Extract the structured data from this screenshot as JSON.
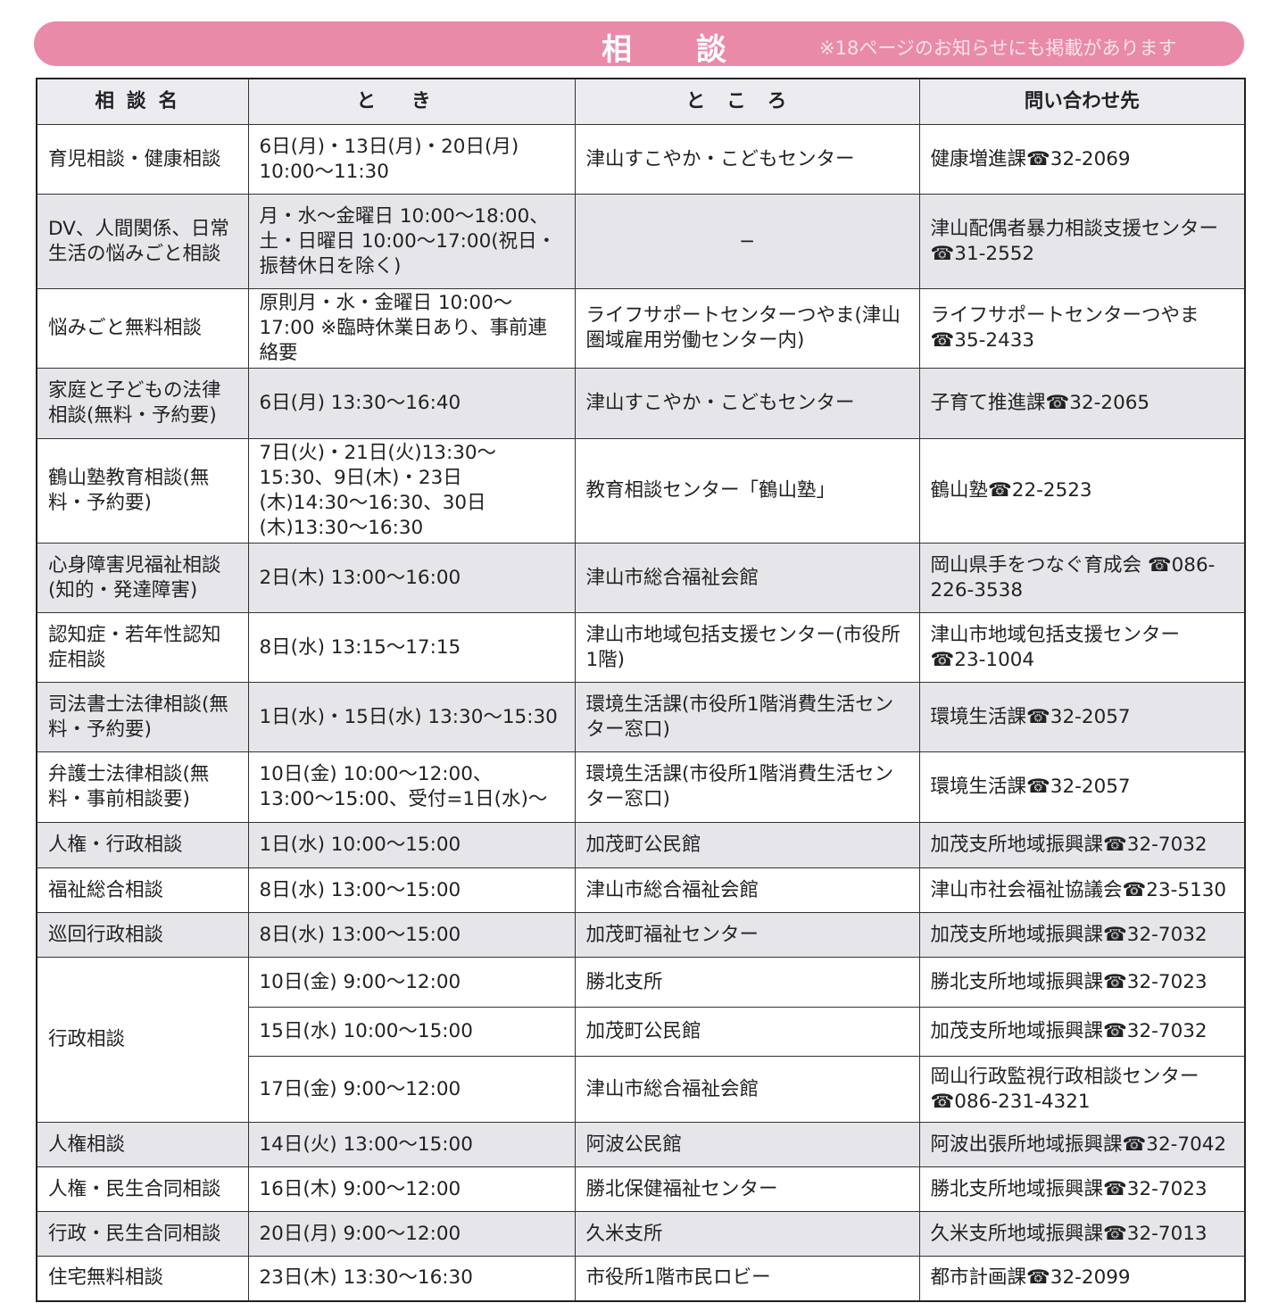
{
  "banner": {
    "title": "相談",
    "note": "※18ページのお知らせにも掲載があります",
    "color": "#e98aa8"
  },
  "table": {
    "headers": [
      "相談名",
      "とき",
      "ところ",
      "問い合わせ先"
    ],
    "rows": [
      {
        "name": "育児相談・健康相談",
        "when": "6日(月)・13日(月)・20日(月) 10:00〜11:30",
        "where": "津山すこやか・こどもセンター",
        "contact": "健康増進課☎32-2069"
      },
      {
        "name": "DV、人間関係、日常生活の悩みごと相談",
        "when": "月・水〜金曜日 10:00〜18:00、土・日曜日 10:00〜17:00(祝日・振替休日を除く)",
        "where": "−",
        "contact": "津山配偶者暴力相談支援センター☎31-2552"
      },
      {
        "name": "悩みごと無料相談",
        "when": "原則月・水・金曜日 10:00〜17:00 ※臨時休業日あり、事前連絡要",
        "where": "ライフサポートセンターつやま(津山圏域雇用労働センター内)",
        "contact": "ライフサポートセンターつやま ☎35-2433"
      },
      {
        "name": "家庭と子どもの法律相談(無料・予約要)",
        "when": "6日(月) 13:30〜16:40",
        "where": "津山すこやか・こどもセンター",
        "contact": "子育て推進課☎32-2065"
      },
      {
        "name": "鶴山塾教育相談(無料・予約要)",
        "when": "7日(火)・21日(火)13:30〜15:30、9日(木)・23日(木)14:30〜16:30、30日(木)13:30〜16:30",
        "where": "教育相談センター「鶴山塾」",
        "contact": "鶴山塾☎22-2523"
      },
      {
        "name": "心身障害児福祉相談(知的・発達障害)",
        "when": "2日(木) 13:00〜16:00",
        "where": "津山市総合福祉会館",
        "contact": "岡山県手をつなぐ育成会 ☎086-226-3538"
      },
      {
        "name": "認知症・若年性認知症相談",
        "when": "8日(水) 13:15〜17:15",
        "where": "津山市地域包括支援センター(市役所1階)",
        "contact": "津山市地域包括支援センター ☎23-1004"
      },
      {
        "name": "司法書士法律相談(無料・予約要)",
        "when": "1日(水)・15日(水) 13:30〜15:30",
        "where": "環境生活課(市役所1階消費生活センター窓口)",
        "contact": "環境生活課☎32-2057"
      },
      {
        "name": "弁護士法律相談(無料・事前相談要)",
        "when": "10日(金) 10:00〜12:00、13:00〜15:00、受付=1日(水)〜",
        "where": "環境生活課(市役所1階消費生活センター窓口)",
        "contact": "環境生活課☎32-2057"
      },
      {
        "name": "人権・行政相談",
        "when": "1日(水) 10:00〜15:00",
        "where": "加茂町公民館",
        "contact": "加茂支所地域振興課☎32-7032"
      },
      {
        "name": "福祉総合相談",
        "when": "8日(水) 13:00〜15:00",
        "where": "津山市総合福祉会館",
        "contact": "津山市社会福祉協議会☎23-5130"
      },
      {
        "name": "巡回行政相談",
        "when": "8日(水) 13:00〜15:00",
        "where": "加茂町福祉センター",
        "contact": "加茂支所地域振興課☎32-7032"
      }
    ],
    "gyosei": {
      "name": "行政相談",
      "subrows": [
        {
          "when": "10日(金) 9:00〜12:00",
          "where": "勝北支所",
          "contact": "勝北支所地域振興課☎32-7023"
        },
        {
          "when": "15日(水) 10:00〜15:00",
          "where": "加茂町公民館",
          "contact": "加茂支所地域振興課☎32-7032"
        },
        {
          "when": "17日(金) 9:00〜12:00",
          "where": "津山市総合福祉会館",
          "contact": "岡山行政監視行政相談センター ☎086-231-4321"
        }
      ]
    },
    "rows2": [
      {
        "name": "人権相談",
        "when": "14日(火) 13:00〜15:00",
        "where": "阿波公民館",
        "contact": "阿波出張所地域振興課☎32-7042"
      },
      {
        "name": "人権・民生合同相談",
        "when": "16日(木) 9:00〜12:00",
        "where": "勝北保健福祉センター",
        "contact": "勝北支所地域振興課☎32-7023"
      },
      {
        "name": "行政・民生合同相談",
        "when": "20日(月) 9:00〜12:00",
        "where": "久米支所",
        "contact": "久米支所地域振興課☎32-7013"
      },
      {
        "name": "住宅無料相談",
        "when": "23日(木) 13:30〜16:30",
        "where": "市役所1階市民ロビー",
        "contact": "都市計画課☎32-2099"
      }
    ]
  }
}
